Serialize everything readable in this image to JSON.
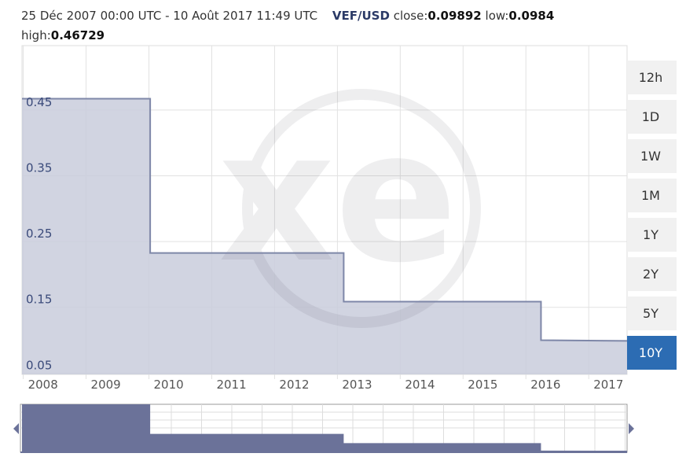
{
  "header": {
    "range": "25 Déc 2007 00:00 UTC - 10 Août 2017 11:49 UTC",
    "pair": "VEF/USD",
    "close_label": "close:",
    "close": 0.09892,
    "low_label": "low:",
    "low": 0.0984,
    "high_label": "high:",
    "high": 0.46729
  },
  "buttons": [
    "12h",
    "1D",
    "1W",
    "1M",
    "1Y",
    "2Y",
    "5Y",
    "10Y"
  ],
  "active_button": "10Y",
  "chart_data": {
    "type": "step-area",
    "x": [
      2007.98,
      2010.02,
      2010.02,
      2013.1,
      2013.1,
      2016.24,
      2016.24,
      2017.61
    ],
    "values": [
      0.46729,
      0.46729,
      0.2326,
      0.2326,
      0.1587,
      0.1587,
      0.1,
      0.09892
    ],
    "color": "#7e87a8",
    "fill": "#c9ccdc",
    "xlim": [
      2007.98,
      2017.61
    ],
    "xticks": [
      2008,
      2009,
      2010,
      2011,
      2012,
      2013,
      2014,
      2015,
      2016,
      2017
    ],
    "ylim": [
      0.048,
      0.548
    ],
    "yticks": [
      0.05,
      0.15,
      0.25,
      0.35,
      0.45
    ],
    "grid": true
  }
}
